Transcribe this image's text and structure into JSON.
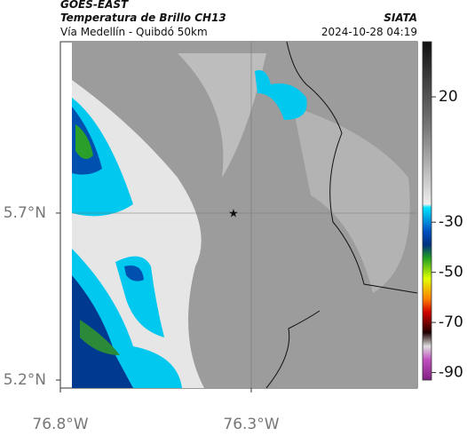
{
  "header": {
    "source": "GOES-EAST",
    "title": "Temperatura de Brillo CH13",
    "agency": "SIATA",
    "route": "Vía Medellín - Quibdó 50km",
    "timestamp": "2024-10-28 04:19"
  },
  "map": {
    "xlim": [
      -76.8,
      -75.865
    ],
    "ylim": [
      5.2,
      6.213
    ],
    "xticks": [
      {
        "value": -76.8,
        "label": "76.8°W"
      },
      {
        "value": -76.3,
        "label": "76.3°W"
      }
    ],
    "yticks": [
      {
        "value": 5.7,
        "label": "5.7°N"
      },
      {
        "value": 5.2,
        "label": "5.2°N"
      }
    ]
  },
  "colorbar": {
    "lim": [
      -93,
      42
    ],
    "ticks": [
      20,
      -30,
      -50,
      -70,
      -90
    ]
  }
}
